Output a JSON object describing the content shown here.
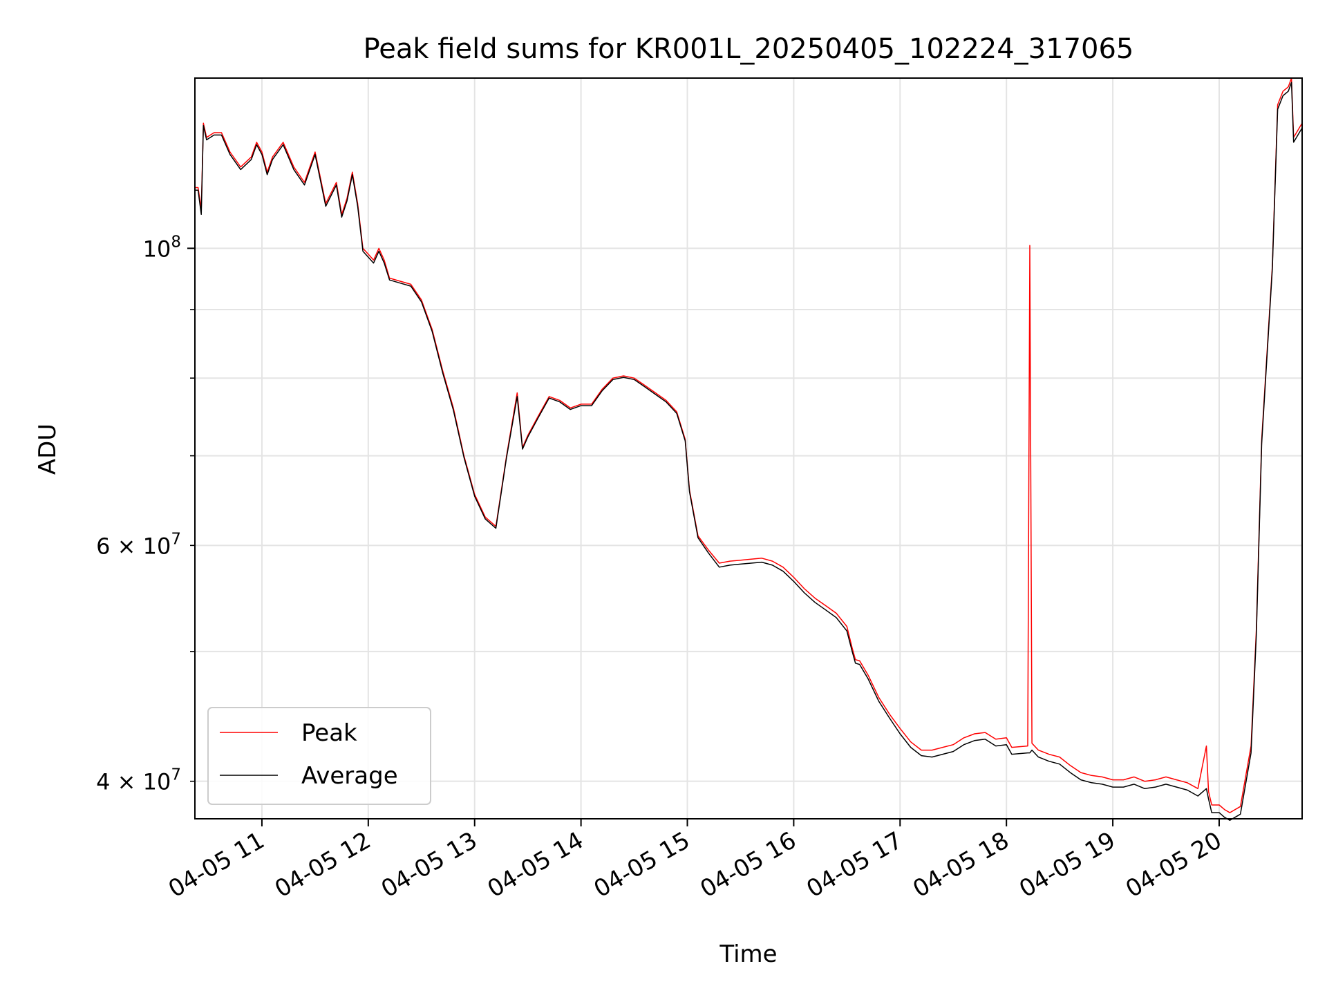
{
  "chart_data": {
    "type": "line",
    "title": "Peak field sums for KR001L_20250405_102224_317065",
    "xlabel": "Time",
    "ylabel": "ADU",
    "yscale": "log",
    "grid": true,
    "legend_position": "lower-left",
    "x_unit": "hours since 04-05 00:00",
    "xlim": [
      10.37,
      20.78
    ],
    "ylim": [
      37500000,
      134000000
    ],
    "x_ticks": [
      11,
      12,
      13,
      14,
      15,
      16,
      17,
      18,
      19,
      20
    ],
    "x_tick_labels": [
      "04-05 11",
      "04-05 12",
      "04-05 13",
      "04-05 14",
      "04-05 15",
      "04-05 16",
      "04-05 17",
      "04-05 18",
      "04-05 19",
      "04-05 20"
    ],
    "y_major_ticks": [
      100000000
    ],
    "y_major_tick_labels": [
      "10^8"
    ],
    "y_minor_ticks": [
      40000000,
      50000000,
      60000000,
      70000000,
      80000000,
      90000000
    ],
    "y_minor_tick_labels": [
      "4 × 10^7",
      "",
      "6 × 10^7",
      "",
      "",
      ""
    ],
    "series": [
      {
        "name": "Peak",
        "color": "#ff0000",
        "x": [
          10.37,
          10.4,
          10.43,
          10.45,
          10.48,
          10.55,
          10.62,
          10.7,
          10.8,
          10.9,
          10.95,
          11.0,
          11.05,
          11.1,
          11.2,
          11.3,
          11.4,
          11.5,
          11.6,
          11.7,
          11.75,
          11.8,
          11.85,
          11.9,
          11.95,
          12.0,
          12.05,
          12.1,
          12.15,
          12.2,
          12.3,
          12.4,
          12.5,
          12.6,
          12.7,
          12.8,
          12.9,
          13.0,
          13.1,
          13.2,
          13.3,
          13.4,
          13.45,
          13.5,
          13.6,
          13.7,
          13.8,
          13.9,
          14.0,
          14.1,
          14.2,
          14.3,
          14.4,
          14.5,
          14.6,
          14.7,
          14.8,
          14.9,
          14.98,
          15.02,
          15.1,
          15.2,
          15.3,
          15.4,
          15.5,
          15.6,
          15.7,
          15.8,
          15.9,
          16.0,
          16.1,
          16.2,
          16.3,
          16.4,
          16.5,
          16.55,
          16.58,
          16.62,
          16.7,
          16.8,
          16.9,
          17.0,
          17.1,
          17.2,
          17.3,
          17.4,
          17.5,
          17.6,
          17.7,
          17.8,
          17.9,
          18.0,
          18.05,
          18.2,
          18.22,
          18.24,
          18.3,
          18.4,
          18.5,
          18.6,
          18.7,
          18.8,
          18.9,
          19.0,
          19.1,
          19.2,
          19.3,
          19.4,
          19.5,
          19.6,
          19.7,
          19.8,
          19.88,
          19.9,
          19.93,
          20.0,
          20.05,
          20.1,
          20.2,
          20.3,
          20.35,
          20.4,
          20.5,
          20.55,
          20.6,
          20.65,
          20.68,
          20.7,
          20.78
        ],
        "y": [
          111000000,
          111000000,
          107000000,
          124000000,
          121000000,
          122000000,
          122000000,
          118000000,
          115000000,
          117000000,
          120000000,
          118000000,
          114000000,
          117000000,
          120000000,
          115000000,
          112000000,
          118000000,
          108000000,
          112000000,
          106000000,
          109000000,
          114000000,
          108000000,
          100000000,
          99000000,
          98000000,
          100000000,
          98000000,
          95000000,
          94500000,
          94000000,
          91500000,
          87000000,
          81000000,
          76000000,
          70000000,
          65500000,
          63000000,
          62000000,
          70000000,
          78000000,
          71000000,
          72500000,
          75000000,
          77500000,
          77000000,
          76000000,
          76500000,
          76500000,
          78500000,
          80000000,
          80300000,
          80000000,
          79000000,
          78000000,
          77000000,
          75500000,
          72000000,
          66000000,
          61000000,
          59500000,
          58200000,
          58400000,
          58500000,
          58600000,
          58700000,
          58400000,
          57800000,
          56800000,
          55700000,
          54800000,
          54100000,
          53400000,
          52200000,
          50300000,
          49300000,
          49200000,
          48000000,
          46200000,
          44900000,
          43800000,
          42800000,
          42200000,
          42200000,
          42400000,
          42600000,
          43100000,
          43400000,
          43500000,
          43000000,
          43100000,
          42400000,
          42500000,
          100500000,
          42700000,
          42200000,
          41900000,
          41700000,
          41100000,
          40600000,
          40400000,
          40300000,
          40100000,
          40100000,
          40300000,
          40000000,
          40100000,
          40300000,
          40100000,
          39900000,
          39500000,
          42500000,
          39300000,
          38400000,
          38400000,
          38100000,
          37900000,
          38300000,
          42500000,
          52000000,
          72000000,
          97000000,
          128000000,
          131000000,
          132000000,
          134000000,
          121000000,
          124000000
        ]
      },
      {
        "name": "Average",
        "color": "#000000",
        "x": [
          10.37,
          10.4,
          10.43,
          10.45,
          10.48,
          10.55,
          10.62,
          10.7,
          10.8,
          10.9,
          10.95,
          11.0,
          11.05,
          11.1,
          11.2,
          11.3,
          11.4,
          11.5,
          11.6,
          11.7,
          11.75,
          11.8,
          11.85,
          11.9,
          11.95,
          12.0,
          12.05,
          12.1,
          12.15,
          12.2,
          12.3,
          12.4,
          12.5,
          12.6,
          12.7,
          12.8,
          12.9,
          13.0,
          13.1,
          13.2,
          13.3,
          13.4,
          13.45,
          13.5,
          13.6,
          13.7,
          13.8,
          13.9,
          14.0,
          14.1,
          14.2,
          14.3,
          14.4,
          14.5,
          14.6,
          14.7,
          14.8,
          14.9,
          14.98,
          15.02,
          15.1,
          15.2,
          15.3,
          15.4,
          15.5,
          15.6,
          15.7,
          15.8,
          15.9,
          16.0,
          16.1,
          16.2,
          16.3,
          16.4,
          16.5,
          16.55,
          16.58,
          16.62,
          16.7,
          16.8,
          16.9,
          17.0,
          17.1,
          17.2,
          17.3,
          17.4,
          17.5,
          17.6,
          17.7,
          17.8,
          17.9,
          18.0,
          18.05,
          18.2,
          18.22,
          18.24,
          18.3,
          18.4,
          18.5,
          18.6,
          18.7,
          18.8,
          18.9,
          19.0,
          19.1,
          19.2,
          19.3,
          19.4,
          19.5,
          19.6,
          19.7,
          19.8,
          19.88,
          19.9,
          19.93,
          20.0,
          20.05,
          20.1,
          20.2,
          20.3,
          20.35,
          20.4,
          20.5,
          20.55,
          20.6,
          20.65,
          20.68,
          20.7,
          20.78
        ],
        "y": [
          110500000,
          110500000,
          106000000,
          123500000,
          120500000,
          121500000,
          121500000,
          117500000,
          114500000,
          116500000,
          119500000,
          117500000,
          113500000,
          116500000,
          119500000,
          114500000,
          111500000,
          117500000,
          107500000,
          111500000,
          105500000,
          108500000,
          113500000,
          107500000,
          99500000,
          98500000,
          97500000,
          99500000,
          97500000,
          94700000,
          94200000,
          93700000,
          91200000,
          86700000,
          80700000,
          75700000,
          69800000,
          65300000,
          62800000,
          61800000,
          69800000,
          77500000,
          70800000,
          72300000,
          74800000,
          77300000,
          76800000,
          75800000,
          76300000,
          76300000,
          78300000,
          79800000,
          80100000,
          79800000,
          78800000,
          77800000,
          76800000,
          75300000,
          71800000,
          65800000,
          60800000,
          59200000,
          57800000,
          58000000,
          58100000,
          58200000,
          58300000,
          58000000,
          57400000,
          56400000,
          55300000,
          54400000,
          53700000,
          53000000,
          51800000,
          50000000,
          49000000,
          48900000,
          47700000,
          45900000,
          44600000,
          43400000,
          42400000,
          41800000,
          41700000,
          41900000,
          42100000,
          42600000,
          42900000,
          43000000,
          42500000,
          42600000,
          41900000,
          42000000,
          42000000,
          42200000,
          41700000,
          41400000,
          41200000,
          40600000,
          40100000,
          39900000,
          39800000,
          39600000,
          39600000,
          39800000,
          39500000,
          39600000,
          39800000,
          39600000,
          39400000,
          39000000,
          39500000,
          38800000,
          37900000,
          37900000,
          37600000,
          37400000,
          37800000,
          42000000,
          51500000,
          71500000,
          96500000,
          127000000,
          130000000,
          131000000,
          133000000,
          120000000,
          123000000
        ]
      }
    ]
  }
}
